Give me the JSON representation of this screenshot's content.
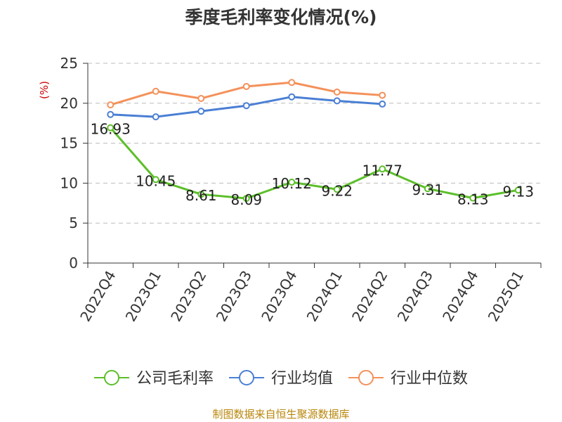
{
  "chart_data": {
    "type": "line",
    "title": "季度毛利率变化情况(%)",
    "ylabel": "(%)",
    "xlabel": "",
    "ylim": [
      0,
      25
    ],
    "yticks": [
      0,
      5,
      10,
      15,
      20,
      25
    ],
    "grid": true,
    "legend_position": "bottom",
    "categories": [
      "2022Q4",
      "2023Q1",
      "2023Q2",
      "2023Q3",
      "2023Q4",
      "2024Q1",
      "2024Q2",
      "2024Q3",
      "2024Q4",
      "2025Q1"
    ],
    "series": [
      {
        "name": "公司毛利率",
        "color": "#5cbf2a",
        "show_labels": true,
        "values": [
          16.93,
          10.45,
          8.61,
          8.09,
          10.12,
          9.22,
          11.77,
          9.31,
          8.13,
          9.13
        ],
        "labels": [
          "16.93",
          "10.45",
          "8.61",
          "8.09",
          "10.12",
          "9.22",
          "11.77",
          "9.31",
          "8.13",
          "9.13"
        ]
      },
      {
        "name": "行业均值",
        "color": "#4a7fd4",
        "show_labels": false,
        "values": [
          18.6,
          18.3,
          19.0,
          19.7,
          20.8,
          20.3,
          19.9,
          null,
          null,
          null
        ]
      },
      {
        "name": "行业中位数",
        "color": "#f4915a",
        "show_labels": false,
        "values": [
          19.8,
          21.5,
          20.6,
          22.1,
          22.6,
          21.4,
          21.0,
          null,
          null,
          null
        ]
      }
    ]
  },
  "source": "制图数据来自恒生聚源数据库"
}
